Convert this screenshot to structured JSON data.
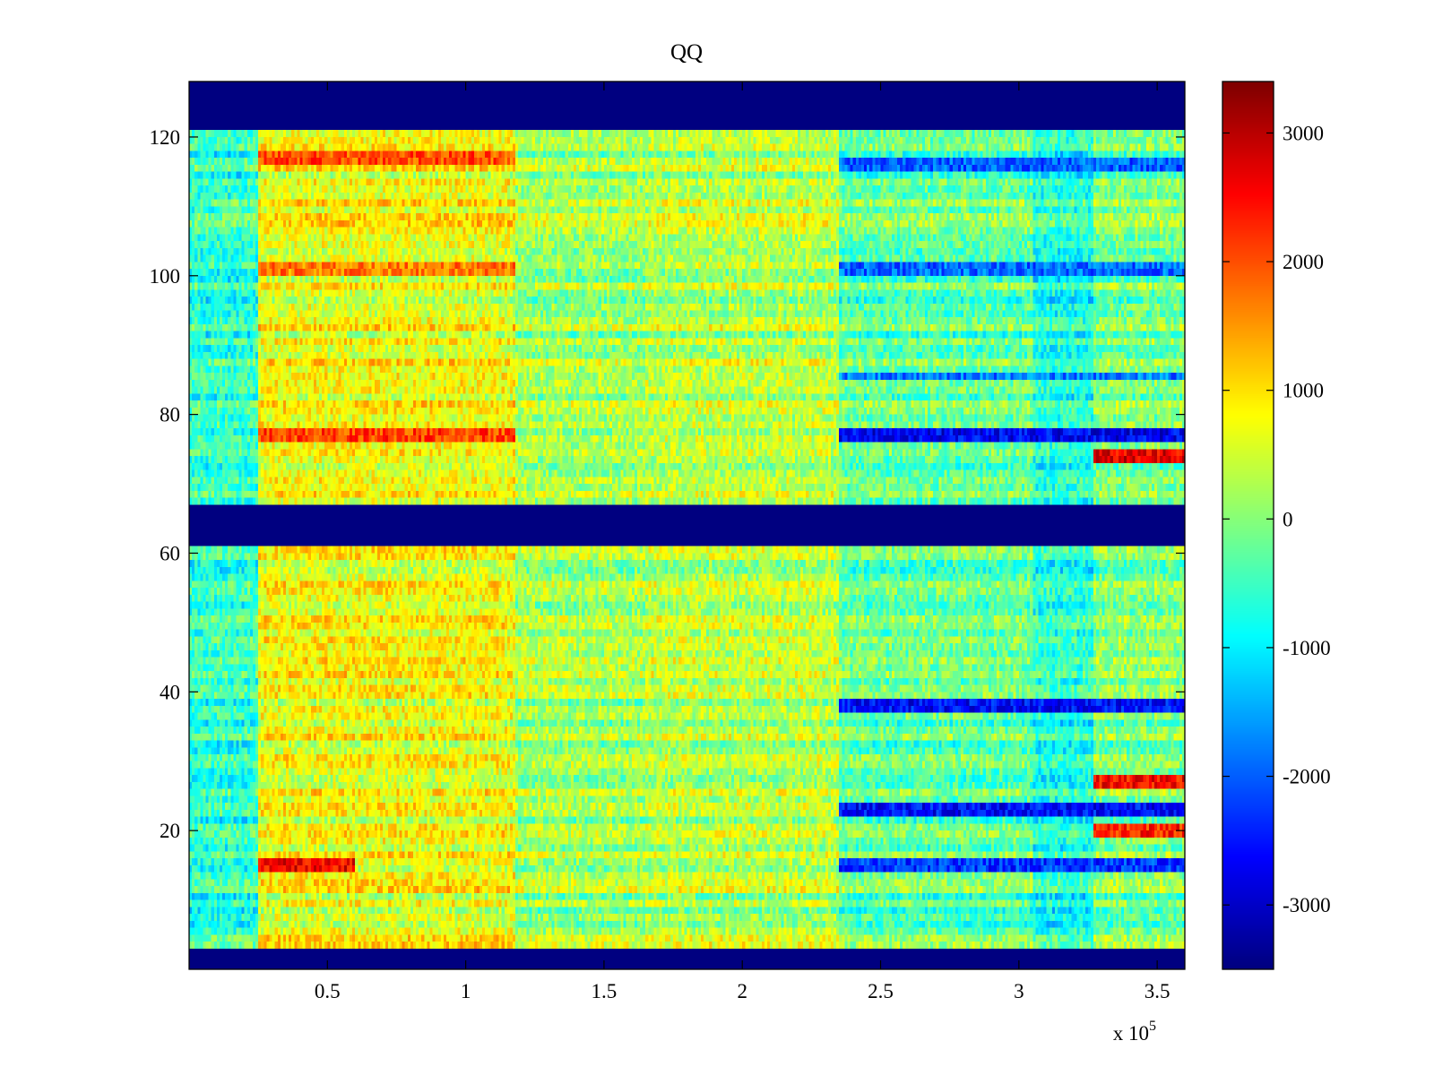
{
  "chart_data": {
    "type": "heatmap",
    "title": "QQ",
    "xlabel": "",
    "ylabel": "",
    "x_exponent_label": "x 10",
    "x_exponent_power": "5",
    "xlim": [
      0,
      3.6
    ],
    "ylim": [
      0,
      128
    ],
    "x_ticks": [
      0.5,
      1,
      1.5,
      2,
      2.5,
      3,
      3.5
    ],
    "x_tick_labels": [
      "0.5",
      "1",
      "1.5",
      "2",
      "2.5",
      "3",
      "3.5"
    ],
    "y_ticks": [
      20,
      40,
      60,
      80,
      100,
      120
    ],
    "y_tick_labels": [
      "20",
      "40",
      "60",
      "80",
      "100",
      "120"
    ],
    "colormap": "jet",
    "clim": [
      -3500,
      3400
    ],
    "colorbar_ticks": [
      3000,
      2000,
      1000,
      0,
      -1000,
      -2000,
      -3000
    ],
    "colorbar_tick_labels": [
      "3000",
      "2000",
      "1000",
      "0",
      "-1000",
      "-2000",
      "-3000"
    ],
    "blank_row_bands": [
      [
        0,
        3
      ],
      [
        61,
        67
      ],
      [
        121,
        128
      ]
    ],
    "blank_value": -3500,
    "segments_x": [
      {
        "range": [
          0,
          0.25
        ],
        "level": -600
      },
      {
        "range": [
          0.25,
          1.18
        ],
        "level": 700
      },
      {
        "range": [
          1.18,
          1.65
        ],
        "level": 150
      },
      {
        "range": [
          1.65,
          2.35
        ],
        "level": 300
      },
      {
        "range": [
          2.35,
          3.05
        ],
        "level": -250
      },
      {
        "range": [
          3.05,
          3.27
        ],
        "level": -700
      },
      {
        "range": [
          3.27,
          3.6
        ],
        "level": -100
      }
    ],
    "highlighted_rows": [
      {
        "rows": [
          116,
          117
        ],
        "value": 2000,
        "x_range": [
          0.25,
          1.18
        ]
      },
      {
        "rows": [
          100,
          101
        ],
        "value": 1700,
        "x_range": [
          0.25,
          1.18
        ]
      },
      {
        "rows": [
          76,
          77
        ],
        "value": 2100,
        "x_range": [
          0.25,
          1.18
        ]
      },
      {
        "rows": [
          14,
          15
        ],
        "value": 2600,
        "x_range": [
          0.25,
          0.6
        ]
      },
      {
        "rows": [
          76,
          77
        ],
        "value": -2700,
        "x_range": [
          2.35,
          3.6
        ]
      },
      {
        "rows": [
          73,
          74
        ],
        "value": 2700,
        "x_range": [
          3.27,
          3.6
        ]
      },
      {
        "rows": [
          37,
          38
        ],
        "value": -2600,
        "x_range": [
          2.35,
          3.6
        ]
      },
      {
        "rows": [
          22,
          23
        ],
        "value": -2600,
        "x_range": [
          2.35,
          3.6
        ]
      },
      {
        "rows": [
          26,
          27
        ],
        "value": 2500,
        "x_range": [
          3.27,
          3.6
        ]
      },
      {
        "rows": [
          19,
          20
        ],
        "value": 2300,
        "x_range": [
          3.27,
          3.6
        ]
      },
      {
        "rows": [
          14,
          15
        ],
        "value": -2300,
        "x_range": [
          2.35,
          3.6
        ]
      },
      {
        "rows": [
          115,
          116
        ],
        "value": -2000,
        "x_range": [
          2.35,
          3.6
        ]
      },
      {
        "rows": [
          100,
          101
        ],
        "value": -1900,
        "x_range": [
          2.35,
          3.6
        ]
      },
      {
        "rows": [
          85
        ],
        "value": -1800,
        "x_range": [
          2.35,
          3.6
        ]
      }
    ]
  }
}
